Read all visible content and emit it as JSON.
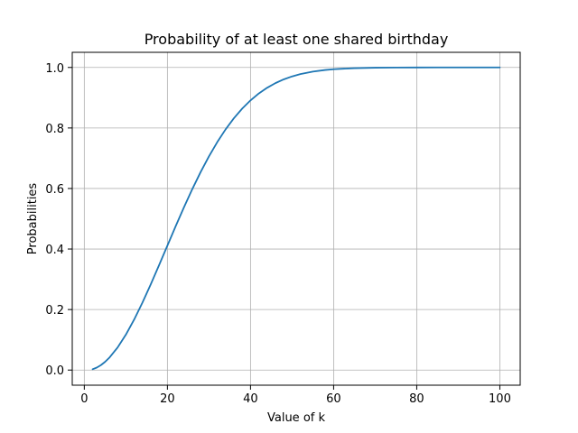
{
  "chart_data": {
    "type": "line",
    "title": "Probability of at least one shared birthday",
    "xlabel": "Value of k",
    "ylabel": "Probabilities",
    "xlim": [
      -2.9,
      104.9
    ],
    "ylim": [
      -0.05,
      1.05
    ],
    "xticks": [
      0,
      20,
      40,
      60,
      80,
      100
    ],
    "yticks": [
      0.0,
      0.2,
      0.4,
      0.6,
      0.8,
      1.0
    ],
    "xtick_labels": [
      "0",
      "20",
      "40",
      "60",
      "80",
      "100"
    ],
    "ytick_labels": [
      "0.0",
      "0.2",
      "0.4",
      "0.6",
      "0.8",
      "1.0"
    ],
    "grid": true,
    "line_color": "#1f77b4",
    "grid_color": "#b0b0b0",
    "series": [
      {
        "x": [
          2,
          3,
          4,
          5,
          6,
          8,
          10,
          12,
          14,
          16,
          18,
          20,
          22,
          24,
          26,
          28,
          30,
          32,
          34,
          36,
          38,
          40,
          42,
          44,
          46,
          48,
          50,
          52,
          55,
          58,
          60,
          65,
          70,
          75,
          80,
          85,
          90,
          95,
          100
        ],
        "y": [
          0.0027,
          0.0082,
          0.0164,
          0.0271,
          0.0405,
          0.0743,
          0.1169,
          0.167,
          0.2231,
          0.2836,
          0.3469,
          0.4114,
          0.4757,
          0.5383,
          0.5982,
          0.6545,
          0.7063,
          0.7533,
          0.7953,
          0.8322,
          0.8641,
          0.8912,
          0.914,
          0.9329,
          0.9483,
          0.9606,
          0.9704,
          0.978,
          0.9863,
          0.9917,
          0.9941,
          0.9977,
          0.9992,
          0.9997,
          0.9999,
          1.0,
          1.0,
          1.0,
          1.0
        ]
      }
    ]
  }
}
